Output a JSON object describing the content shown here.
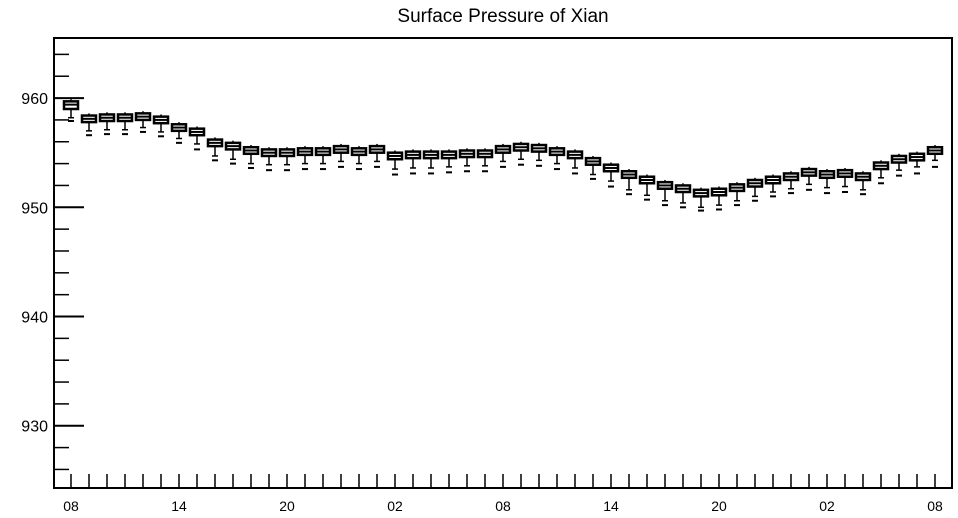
{
  "chart_data": {
    "type": "boxplot",
    "title": "Surface Pressure of Xian",
    "xlabel": "",
    "ylabel": "",
    "ylim": [
      924.3,
      965.5
    ],
    "yticks": [
      930,
      940,
      950,
      960
    ],
    "xtick_labels": [
      "08",
      "14",
      "20",
      "02",
      "08",
      "14",
      "20",
      "02",
      "08"
    ],
    "xtick_positions": [
      0,
      6,
      12,
      18,
      24,
      30,
      36,
      42,
      48
    ],
    "grid": false,
    "legend": "none",
    "x": [
      0,
      1,
      2,
      3,
      4,
      5,
      6,
      7,
      8,
      9,
      10,
      11,
      12,
      13,
      14,
      15,
      16,
      17,
      18,
      19,
      20,
      21,
      22,
      23,
      24,
      25,
      26,
      27,
      28,
      29,
      30,
      31,
      32,
      33,
      34,
      35,
      36,
      37,
      38,
      39,
      40,
      41,
      42,
      43,
      44,
      45,
      46,
      47,
      48
    ],
    "median": [
      959.4,
      958.1,
      958.2,
      958.2,
      958.3,
      958.0,
      957.3,
      956.9,
      955.9,
      955.6,
      955.2,
      955.0,
      955.0,
      955.1,
      955.1,
      955.3,
      955.1,
      955.3,
      954.7,
      954.8,
      954.8,
      954.8,
      954.9,
      954.9,
      955.3,
      955.5,
      955.4,
      955.1,
      954.8,
      954.2,
      953.6,
      953.0,
      952.5,
      952.0,
      951.7,
      951.3,
      951.4,
      951.8,
      952.2,
      952.5,
      952.8,
      953.2,
      953.0,
      953.1,
      952.8,
      953.8,
      954.4,
      954.6,
      955.2
    ],
    "q1": [
      959.0,
      957.8,
      957.9,
      957.9,
      958.0,
      957.7,
      957.0,
      956.6,
      955.6,
      955.3,
      954.9,
      954.7,
      954.7,
      954.8,
      954.8,
      955.0,
      954.8,
      955.0,
      954.4,
      954.5,
      954.5,
      954.5,
      954.6,
      954.6,
      955.0,
      955.2,
      955.1,
      954.8,
      954.5,
      953.9,
      953.3,
      952.7,
      952.2,
      951.7,
      951.4,
      951.0,
      951.1,
      951.5,
      951.9,
      952.2,
      952.5,
      952.9,
      952.7,
      952.8,
      952.5,
      953.5,
      954.1,
      954.3,
      954.9
    ],
    "q3": [
      959.7,
      958.4,
      958.5,
      958.5,
      958.6,
      958.3,
      957.6,
      957.2,
      956.2,
      955.9,
      955.5,
      955.3,
      955.3,
      955.4,
      955.4,
      955.6,
      955.4,
      955.6,
      955.0,
      955.1,
      955.1,
      955.1,
      955.2,
      955.2,
      955.6,
      955.8,
      955.7,
      955.4,
      955.1,
      954.5,
      953.9,
      953.3,
      952.8,
      952.3,
      952.0,
      951.6,
      951.7,
      952.1,
      952.5,
      952.8,
      953.1,
      953.5,
      953.3,
      953.4,
      953.1,
      954.1,
      954.7,
      954.9,
      955.5
    ],
    "whisker_low": [
      958.2,
      957.0,
      957.1,
      957.1,
      957.3,
      956.9,
      956.3,
      955.8,
      954.7,
      954.4,
      954.0,
      953.9,
      953.9,
      954.0,
      954.0,
      954.2,
      954.0,
      954.2,
      953.5,
      953.6,
      953.6,
      953.7,
      953.8,
      953.8,
      954.2,
      954.4,
      954.3,
      954.0,
      953.6,
      953.0,
      952.4,
      951.6,
      951.1,
      950.6,
      950.4,
      950.0,
      950.2,
      950.6,
      951.0,
      951.4,
      951.7,
      952.1,
      951.8,
      951.9,
      951.6,
      952.7,
      953.4,
      953.7,
      954.3
    ],
    "whisker_high": [
      959.9,
      958.6,
      958.7,
      958.7,
      958.8,
      958.5,
      957.8,
      957.4,
      956.4,
      956.1,
      955.7,
      955.5,
      955.5,
      955.6,
      955.6,
      955.8,
      955.6,
      955.8,
      955.2,
      955.3,
      955.3,
      955.3,
      955.4,
      955.4,
      955.8,
      956.0,
      955.9,
      955.6,
      955.3,
      954.7,
      954.1,
      953.5,
      953.0,
      952.5,
      952.2,
      951.8,
      951.9,
      952.3,
      952.7,
      953.0,
      953.3,
      953.7,
      953.5,
      953.6,
      953.3,
      954.3,
      954.9,
      955.1,
      955.7
    ],
    "outlier": [
      957.9,
      956.6,
      956.7,
      956.7,
      956.9,
      956.5,
      955.9,
      955.3,
      954.3,
      954.0,
      953.6,
      953.4,
      953.4,
      953.5,
      953.5,
      953.7,
      953.5,
      953.7,
      953.0,
      953.1,
      953.1,
      953.2,
      953.3,
      953.3,
      953.7,
      953.9,
      953.8,
      953.5,
      953.1,
      952.6,
      951.9,
      951.2,
      950.7,
      950.2,
      950.0,
      949.7,
      949.8,
      950.2,
      950.6,
      951.0,
      951.3,
      951.6,
      951.3,
      951.4,
      951.2,
      952.2,
      952.9,
      953.1,
      953.7
    ]
  }
}
